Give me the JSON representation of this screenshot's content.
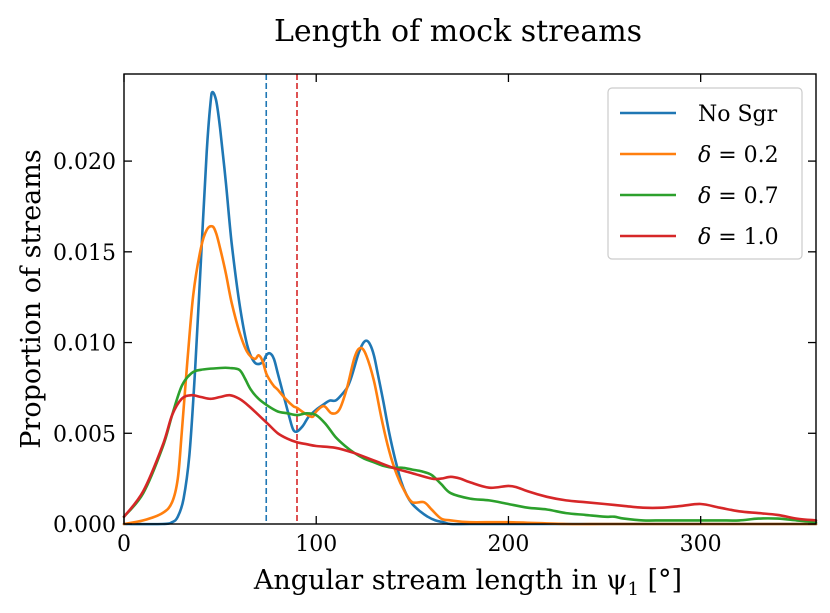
{
  "chart_data": {
    "type": "line",
    "title": "Length of mock streams",
    "xlabel": "Angular stream length in ψ",
    "xlabel_sub": "1",
    "xlabel_unit": " [°]",
    "ylabel": "Proportion of streams",
    "xlim": [
      0,
      360
    ],
    "ylim": [
      0,
      0.0248
    ],
    "xticks": [
      0,
      100,
      200,
      300
    ],
    "xtick_labels": [
      "0",
      "100",
      "200",
      "300"
    ],
    "yticks": [
      0,
      0.005,
      0.01,
      0.015,
      0.02
    ],
    "ytick_labels": [
      "0.000",
      "0.005",
      "0.010",
      "0.015",
      "0.020"
    ],
    "grid": false,
    "legend_position": "top-right",
    "series": [
      {
        "name": "No Sgr",
        "legend_prefix": "No Sgr",
        "legend_value": "",
        "color": "#1f77b4",
        "x": [
          0,
          20,
          25,
          28,
          31,
          34,
          37,
          40,
          43,
          45,
          46,
          48,
          50,
          53,
          56,
          60,
          64,
          68,
          72,
          74,
          76,
          78,
          80,
          83,
          86,
          88,
          90,
          93,
          96,
          100,
          104,
          107,
          110,
          113,
          116,
          118,
          120,
          122,
          124,
          126,
          128,
          130,
          132,
          135,
          138,
          141,
          144,
          147,
          150,
          154,
          158,
          162,
          166,
          170,
          180,
          200,
          250,
          300,
          360
        ],
        "y": [
          0,
          0,
          0.0001,
          0.0004,
          0.0014,
          0.0038,
          0.0085,
          0.0145,
          0.0205,
          0.0232,
          0.0238,
          0.0233,
          0.0218,
          0.0188,
          0.0155,
          0.0122,
          0.0099,
          0.0089,
          0.0089,
          0.0093,
          0.0094,
          0.0091,
          0.0083,
          0.0071,
          0.0059,
          0.0052,
          0.0051,
          0.0054,
          0.0059,
          0.0063,
          0.0066,
          0.0068,
          0.0068,
          0.0071,
          0.0075,
          0.008,
          0.0087,
          0.0094,
          0.0099,
          0.0101,
          0.0099,
          0.0093,
          0.0083,
          0.0067,
          0.005,
          0.0036,
          0.0024,
          0.0016,
          0.0011,
          0.0007,
          0.0004,
          0.0002,
          0.0001,
          0,
          0,
          0,
          0,
          0,
          0
        ]
      },
      {
        "name": "δ = 0.2",
        "legend_prefix": "δ",
        "legend_value": "0.2",
        "color": "#ff7f0e",
        "x": [
          0,
          10,
          20,
          25,
          28,
          30,
          33,
          36,
          40,
          43,
          46,
          48,
          50,
          53,
          56,
          60,
          64,
          68,
          70,
          72,
          74,
          76,
          78,
          80,
          84,
          88,
          90,
          94,
          98,
          100,
          104,
          108,
          112,
          116,
          120,
          123,
          126,
          130,
          134,
          138,
          142,
          146,
          150,
          156,
          160,
          165,
          170,
          180,
          200,
          230,
          250,
          280,
          300,
          320,
          340,
          360
        ],
        "y": [
          0,
          0.0002,
          0.0006,
          0.0012,
          0.0025,
          0.005,
          0.009,
          0.0126,
          0.0152,
          0.0162,
          0.0164,
          0.016,
          0.0152,
          0.0138,
          0.0122,
          0.0106,
          0.0095,
          0.0091,
          0.0093,
          0.009,
          0.0083,
          0.0079,
          0.0076,
          0.0074,
          0.0069,
          0.0065,
          0.0064,
          0.0061,
          0.0059,
          0.0062,
          0.0065,
          0.0061,
          0.0063,
          0.0075,
          0.0092,
          0.0097,
          0.0093,
          0.0079,
          0.0058,
          0.004,
          0.0027,
          0.0018,
          0.0012,
          0.0012,
          0.0008,
          0.0003,
          0.0002,
          0.0001,
          0.0001,
          0,
          0,
          0,
          0,
          0,
          0,
          0
        ]
      },
      {
        "name": "δ = 0.7",
        "legend_prefix": "δ",
        "legend_value": "0.7",
        "color": "#2ca02c",
        "x": [
          0,
          10,
          20,
          25,
          30,
          35,
          40,
          50,
          55,
          60,
          63,
          66,
          70,
          75,
          80,
          85,
          90,
          95,
          100,
          105,
          110,
          115,
          120,
          125,
          130,
          135,
          140,
          145,
          150,
          155,
          160,
          165,
          170,
          180,
          190,
          200,
          210,
          220,
          230,
          240,
          250,
          255,
          260,
          270,
          280,
          290,
          300,
          310,
          320,
          330,
          340,
          350,
          360
        ],
        "y": [
          0.0004,
          0.0017,
          0.0042,
          0.006,
          0.0076,
          0.0083,
          0.0085,
          0.0086,
          0.0086,
          0.0085,
          0.008,
          0.0074,
          0.0069,
          0.0065,
          0.0062,
          0.0061,
          0.006,
          0.0061,
          0.006,
          0.0055,
          0.0048,
          0.0043,
          0.0039,
          0.0036,
          0.0034,
          0.0032,
          0.0031,
          0.0031,
          0.003,
          0.0029,
          0.0027,
          0.0022,
          0.0017,
          0.0014,
          0.0013,
          0.0011,
          0.0009,
          0.0008,
          0.0006,
          0.0005,
          0.0004,
          0.0004,
          0.0003,
          0.0002,
          0.0002,
          0.0002,
          0.0002,
          0.0002,
          0.0002,
          0.0003,
          0.0003,
          0.0002,
          0.0001
        ]
      },
      {
        "name": "δ = 1.0",
        "legend_prefix": "δ",
        "legend_value": "1.0",
        "color": "#d62728",
        "x": [
          0,
          10,
          20,
          25,
          30,
          35,
          40,
          45,
          50,
          55,
          60,
          65,
          70,
          75,
          80,
          85,
          90,
          95,
          100,
          110,
          120,
          130,
          140,
          150,
          160,
          165,
          170,
          175,
          180,
          190,
          200,
          205,
          210,
          220,
          230,
          240,
          250,
          260,
          270,
          280,
          290,
          300,
          310,
          320,
          330,
          340,
          350,
          360
        ],
        "y": [
          0.0004,
          0.0018,
          0.0043,
          0.006,
          0.0069,
          0.0071,
          0.007,
          0.0069,
          0.007,
          0.0071,
          0.0069,
          0.0065,
          0.006,
          0.0055,
          0.005,
          0.0047,
          0.0045,
          0.0044,
          0.0043,
          0.0042,
          0.0039,
          0.0035,
          0.0031,
          0.0028,
          0.0025,
          0.0025,
          0.0026,
          0.0025,
          0.0023,
          0.002,
          0.0021,
          0.002,
          0.0018,
          0.0015,
          0.0013,
          0.0012,
          0.0011,
          0.001,
          0.0009,
          0.0009,
          0.001,
          0.0011,
          0.0009,
          0.0007,
          0.0006,
          0.0005,
          0.0003,
          0.0002
        ]
      }
    ],
    "vlines": [
      {
        "x": 74,
        "color": "#1f77b4",
        "style": "dashed"
      },
      {
        "x": 90,
        "color": "#d62728",
        "style": "dashed"
      }
    ]
  }
}
